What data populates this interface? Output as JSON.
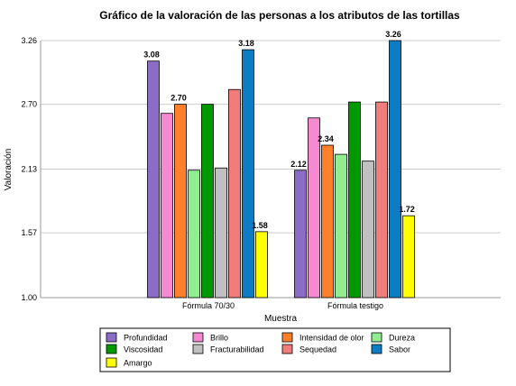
{
  "chart_data": {
    "type": "bar",
    "title": "Gráfico de la valoración de las personas a los atributos de las tortillas",
    "xlabel": "Muestra",
    "ylabel": "Valoración",
    "ylim": [
      1.0,
      3.26
    ],
    "yticks": [
      "1.00",
      "1.57",
      "2.13",
      "2.70",
      "3.26"
    ],
    "grid": true,
    "legend_position": "bottom",
    "categories": [
      "Fórmula 70/30",
      "Fórmula testigo"
    ],
    "series": [
      {
        "name": "Profundidad",
        "color": "#8B6CC6",
        "values": [
          3.08,
          2.12
        ],
        "labels": [
          "3.08",
          "2.12"
        ]
      },
      {
        "name": "Brillo",
        "color": "#F58AD2",
        "values": [
          2.62,
          2.58
        ],
        "labels": [
          "",
          ""
        ]
      },
      {
        "name": "Intensidad de olor",
        "color": "#FF7F2A",
        "values": [
          2.7,
          2.34
        ],
        "labels": [
          "2.70",
          "2.34"
        ]
      },
      {
        "name": "Dureza",
        "color": "#90EE90",
        "values": [
          2.12,
          2.26
        ],
        "labels": [
          "",
          ""
        ]
      },
      {
        "name": "Viscosidad",
        "color": "#009900",
        "values": [
          2.7,
          2.72
        ],
        "labels": [
          "",
          ""
        ]
      },
      {
        "name": "Fracturabilidad",
        "color": "#C0C0C0",
        "values": [
          2.14,
          2.2
        ],
        "labels": [
          "",
          ""
        ]
      },
      {
        "name": "Sequedad",
        "color": "#F07C7C",
        "values": [
          2.83,
          2.72
        ],
        "labels": [
          "",
          ""
        ]
      },
      {
        "name": "Sabor",
        "color": "#0C7DC2",
        "values": [
          3.18,
          3.26
        ],
        "labels": [
          "3.18",
          "3.26"
        ]
      },
      {
        "name": "Amargo",
        "color": "#FFFF00",
        "values": [
          1.58,
          1.72
        ],
        "labels": [
          "1.58",
          "1.72"
        ]
      }
    ]
  }
}
